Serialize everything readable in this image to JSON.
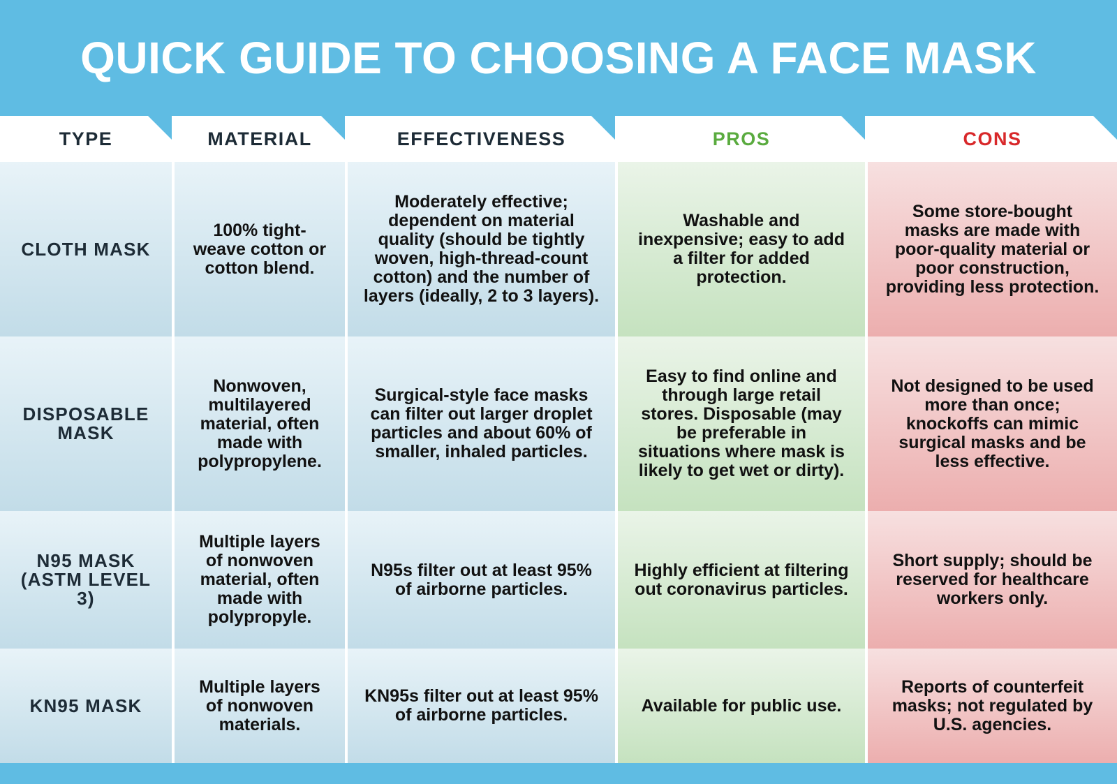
{
  "header": {
    "title": "QUICK GUIDE TO CHOOSING A FACE MASK"
  },
  "table": {
    "columns": [
      "TYPE",
      "MATERIAL",
      "EFFECTIVENESS",
      "PROS",
      "CONS"
    ],
    "rows": [
      [
        "CLOTH MASK",
        "100% tight-weave cotton or cotton blend.",
        "Moderately effective; dependent on material quality (should be tightly woven, high-thread-count cotton) and the number of layers (ideally, 2 to 3 layers).",
        "Washable and inexpensive; easy to add a filter for added protection.",
        "Some store-bought masks are made with poor-quality material or poor construction, providing less protection."
      ],
      [
        "DISPOSABLE MASK",
        "Nonwoven, multilayered material, often made with polypropylene.",
        "Surgical-style face masks can filter out larger droplet particles and about 60% of smaller, inhaled particles.",
        "Easy to find online and through large retail stores. Disposable (may be preferable in situations where mask is likely to get wet or dirty).",
        "Not designed to be used more than once; knockoffs can mimic surgical masks and be less effective."
      ],
      [
        "N95 MASK (ASTM LEVEL 3)",
        "Multiple layers of nonwoven material, often made with polypropyle.",
        "N95s filter out at least 95% of airborne particles.",
        "Highly efficient at filtering out coronavirus particles.",
        "Short supply; should be reserved for healthcare workers only."
      ],
      [
        "KN95 MASK",
        "Multiple layers of nonwoven materials.",
        "KN95s filter out at least 95% of airborne particles.",
        "Available for public use.",
        "Reports of counterfeit masks; not regulated by U.S. agencies."
      ]
    ]
  }
}
